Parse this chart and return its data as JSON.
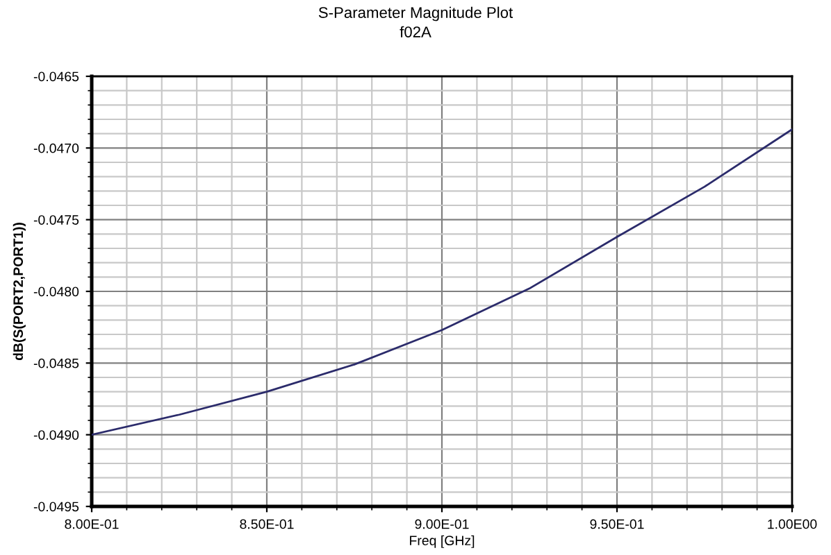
{
  "chart_data": {
    "type": "line",
    "title": "S-Parameter Magnitude Plot",
    "subtitle": "f02A",
    "xlabel": "Freq [GHz]",
    "ylabel": "dB(S(PORT2,PORT1))",
    "x": [
      0.8,
      0.825,
      0.85,
      0.875,
      0.9,
      0.925,
      0.95,
      0.975,
      1.0
    ],
    "series": [
      {
        "color": "#2b2b6b",
        "values": [
          -0.049,
          -0.04886,
          -0.0487,
          -0.04851,
          -0.04827,
          -0.04798,
          -0.04762,
          -0.04727,
          -0.04687
        ]
      }
    ],
    "xlim": [
      0.8,
      1.0
    ],
    "ylim": [
      -0.0495,
      -0.0465
    ],
    "xticks": [
      {
        "value": 0.8,
        "label": "8.00E-01"
      },
      {
        "value": 0.85,
        "label": "8.50E-01"
      },
      {
        "value": 0.9,
        "label": "9.00E-01"
      },
      {
        "value": 0.95,
        "label": "9.50E-01"
      },
      {
        "value": 1.0,
        "label": "1.00E00"
      }
    ],
    "yticks": [
      {
        "value": -0.0495,
        "label": "-0.0495"
      },
      {
        "value": -0.049,
        "label": "-0.0490"
      },
      {
        "value": -0.0485,
        "label": "-0.0485"
      },
      {
        "value": -0.048,
        "label": "-0.0480"
      },
      {
        "value": -0.0475,
        "label": "-0.0475"
      },
      {
        "value": -0.047,
        "label": "-0.0470"
      },
      {
        "value": -0.0465,
        "label": "-0.0465"
      }
    ],
    "grid": true,
    "marker": "none",
    "line_style": "solid"
  }
}
